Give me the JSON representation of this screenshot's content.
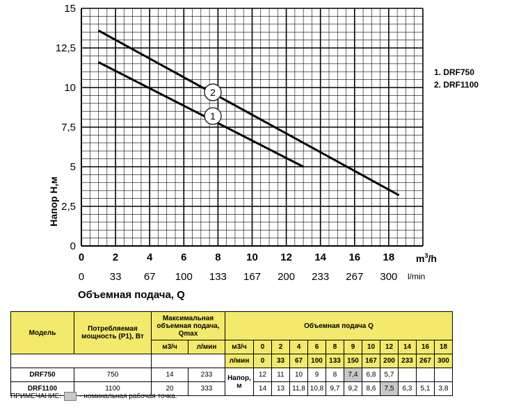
{
  "chart_data": {
    "type": "line",
    "y_ticks": [
      "0",
      "2,5",
      "5",
      "7,5",
      "10",
      "12,5",
      "15"
    ],
    "ylim": [
      0,
      15
    ],
    "ylabel": "Напор  Н,м",
    "x_ticks_m3h": [
      "0",
      "2",
      "4",
      "6",
      "8",
      "10",
      "12",
      "14",
      "16",
      "18"
    ],
    "x_unit_m3h": "m3/h",
    "x_ticks_lmin": [
      "0",
      "33",
      "67",
      "100",
      "133",
      "167",
      "200",
      "233",
      "267",
      "300"
    ],
    "x_unit_lmin": "l/min",
    "xlim": [
      0,
      20
    ],
    "xlabel": "Объемная подача, Q",
    "grid": true,
    "series": [
      {
        "name": "1",
        "x": [
          1,
          13
        ],
        "y": [
          11.6,
          5.0
        ]
      },
      {
        "name": "2",
        "x": [
          1,
          18.6
        ],
        "y": [
          13.6,
          3.2
        ]
      }
    ],
    "markers": [
      {
        "label": "2",
        "x": 7.7,
        "y": 9.7
      },
      {
        "label": "1",
        "x": 7.7,
        "y": 8.2
      }
    ],
    "legend": [
      "1. DRF750",
      "2. DRF1100"
    ],
    "legend_position": "right"
  },
  "table": {
    "h_model": "Модель",
    "h_power": "Потребляемая мощность (Р1), Вт",
    "h_qmax": "Максимальная объемная подача, Qmax",
    "h_flow": "Объемная подача Q",
    "u_m3h": "м3/ч",
    "u_lmin": "л/мин",
    "q_m3h": [
      "0",
      "2",
      "4",
      "6",
      "8",
      "9",
      "10",
      "12",
      "14",
      "16",
      "18"
    ],
    "q_lmin": [
      "0",
      "33",
      "67",
      "100",
      "133",
      "150",
      "167",
      "200",
      "233",
      "267",
      "300"
    ],
    "head_label": "Напор, м",
    "rows": [
      {
        "model": "DRF750",
        "power": "750",
        "qmax_m3h": "14",
        "qmax_lmin": "233",
        "head": [
          "12",
          "11",
          "10",
          "9",
          "8",
          "7,4",
          "6,8",
          "5,7",
          "",
          "",
          ""
        ]
      },
      {
        "model": "DRF1100",
        "power": "1100",
        "qmax_m3h": "20",
        "qmax_lmin": "333",
        "head": [
          "14",
          "13",
          "11,8",
          "10,8",
          "9,7",
          "9,2",
          "8,6",
          "7,5",
          "6,3",
          "5,1",
          "3,8"
        ]
      }
    ]
  },
  "note": {
    "prefix": "ПРИМЕЧАНИЕ:",
    "text": "- номинальная рабочая точка."
  }
}
